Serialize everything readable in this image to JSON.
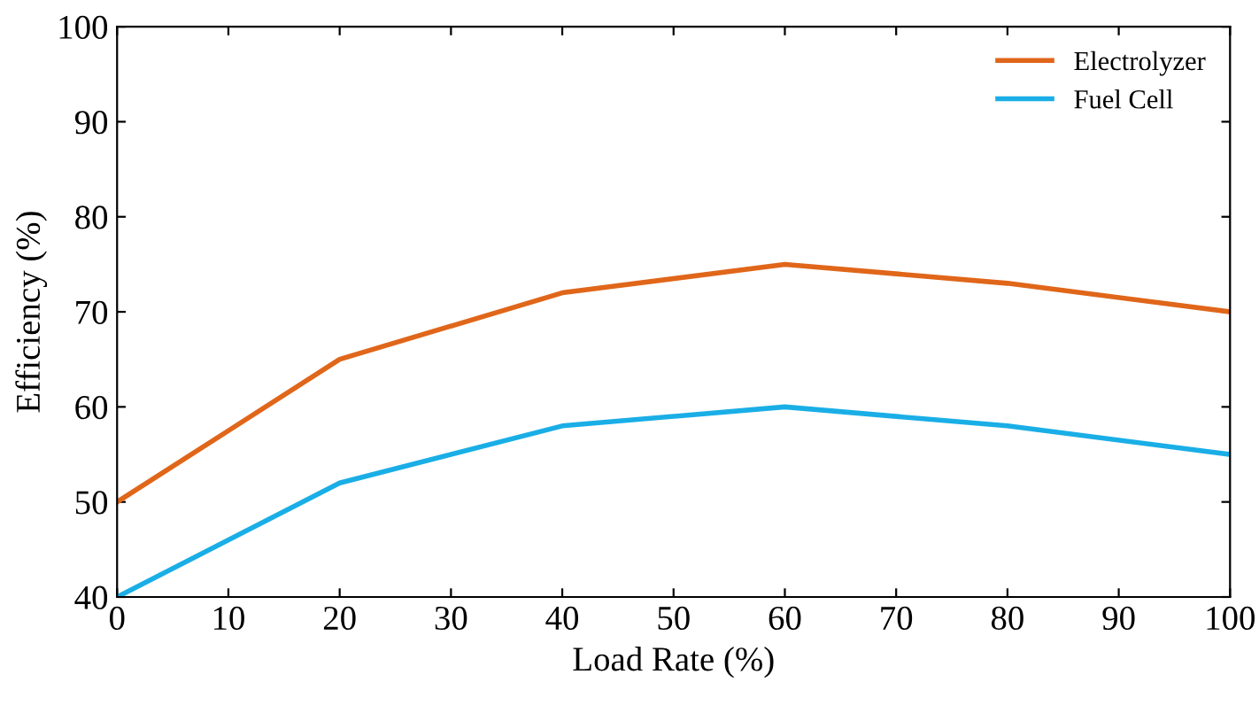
{
  "chart_data": {
    "type": "line",
    "xlabel": "Load Rate (%)",
    "ylabel": "Efficiency (%)",
    "x": [
      0,
      20,
      40,
      60,
      80,
      100
    ],
    "series": [
      {
        "name": "Electrolyzer",
        "color": "#e0661a",
        "values": [
          50,
          65,
          72,
          75,
          73,
          70
        ]
      },
      {
        "name": "Fuel Cell",
        "color": "#1aaee6",
        "values": [
          40,
          52,
          58,
          60,
          58,
          55
        ]
      }
    ],
    "xlim": [
      0,
      100
    ],
    "xticks": [
      0,
      10,
      20,
      30,
      40,
      50,
      60,
      70,
      80,
      90,
      100
    ],
    "ylim": [
      40,
      100
    ],
    "yticks": [
      40,
      50,
      60,
      70,
      80,
      90,
      100
    ],
    "grid": false,
    "legend": "top right",
    "marker": "none",
    "line_style": "solid"
  }
}
